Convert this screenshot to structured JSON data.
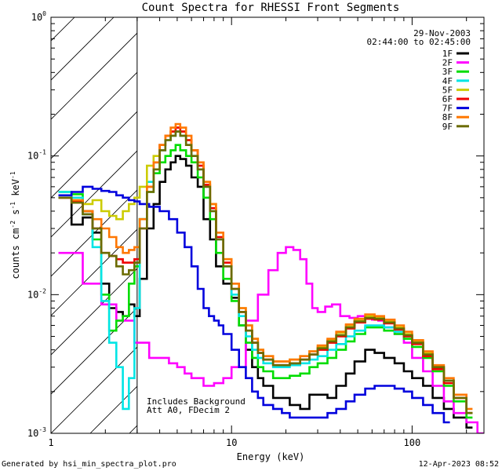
{
  "chart_data": {
    "type": "line",
    "title": "Count Spectra for RHESSI Front Segments",
    "xlabel": "Energy (keV)",
    "ylabel": "counts cm-2 s-1 keV-1",
    "ylabel_parts": {
      "base": "counts cm",
      "e1": "-2",
      "mid1": " s",
      "e2": "-1",
      "mid2": " keV",
      "e3": "-1"
    },
    "xscale": "log",
    "yscale": "log",
    "xlim": [
      1.0,
      250
    ],
    "ylim": [
      0.001,
      1.0
    ],
    "x_ticks": [
      {
        "value": 1,
        "label": "1"
      },
      {
        "value": 10,
        "label": "10"
      },
      {
        "value": 100,
        "label": "100"
      }
    ],
    "y_ticks": [
      {
        "value": 0.001,
        "label": "10",
        "exp": "-3"
      },
      {
        "value": 0.01,
        "label": "10",
        "exp": "-2"
      },
      {
        "value": 0.1,
        "label": "10",
        "exp": "-1"
      },
      {
        "value": 1.0,
        "label": "10",
        "exp": "0"
      }
    ],
    "hatched_region": {
      "x_start": 1.0,
      "x_end": 3.0
    },
    "info": {
      "date": "29-Nov-2003",
      "time_range": "02:44:00 to 02:45:00"
    },
    "annotations": [
      "Includes Background",
      "Att A0, FDecim 2"
    ],
    "legend_position": "top-right",
    "series": [
      {
        "name": "1F",
        "color": "#000000",
        "x": [
          1.1,
          1.3,
          1.5,
          1.7,
          1.9,
          2.1,
          2.3,
          2.5,
          2.7,
          2.9,
          3.1,
          3.4,
          3.7,
          4.0,
          4.3,
          4.6,
          4.9,
          5.2,
          5.6,
          6.0,
          6.5,
          7.0,
          7.6,
          8.2,
          9.0,
          10,
          11,
          12,
          13,
          14,
          15,
          17,
          19,
          21,
          24,
          27,
          30,
          34,
          38,
          43,
          48,
          55,
          62,
          70,
          80,
          90,
          100,
          115,
          130,
          150,
          170,
          200
        ],
        "y": [
          0.05,
          0.032,
          0.036,
          0.028,
          0.012,
          0.008,
          0.0075,
          0.007,
          0.0085,
          0.007,
          0.013,
          0.03,
          0.045,
          0.065,
          0.08,
          0.09,
          0.1,
          0.095,
          0.085,
          0.07,
          0.06,
          0.035,
          0.025,
          0.016,
          0.012,
          0.0095,
          0.006,
          0.004,
          0.003,
          0.0025,
          0.0022,
          0.0018,
          0.0018,
          0.0016,
          0.0015,
          0.0019,
          0.0019,
          0.0018,
          0.0022,
          0.0027,
          0.0033,
          0.004,
          0.0038,
          0.0035,
          0.0032,
          0.0028,
          0.0025,
          0.0022,
          0.0018,
          0.0015,
          0.0013,
          0.0011
        ]
      },
      {
        "name": "2F",
        "color": "#ff00ff",
        "x": [
          1.1,
          1.3,
          1.5,
          1.7,
          1.9,
          2.1,
          2.3,
          2.5,
          2.7,
          2.9,
          3.1,
          3.5,
          4,
          4.5,
          5,
          5.5,
          6,
          7,
          8,
          9,
          10,
          12,
          14,
          16,
          18,
          20,
          22,
          24,
          26,
          28,
          30,
          33,
          36,
          40,
          45,
          50,
          55,
          60,
          65,
          70,
          80,
          90,
          100,
          115,
          130,
          150,
          170,
          200,
          230
        ],
        "y": [
          0.02,
          0.02,
          0.012,
          0.012,
          0.0085,
          0.0085,
          0.0065,
          0.0065,
          0.0065,
          0.0045,
          0.0045,
          0.0035,
          0.0035,
          0.0032,
          0.003,
          0.0027,
          0.0025,
          0.0022,
          0.0023,
          0.0025,
          0.003,
          0.0065,
          0.01,
          0.015,
          0.02,
          0.022,
          0.021,
          0.018,
          0.012,
          0.008,
          0.0075,
          0.0082,
          0.0085,
          0.007,
          0.0068,
          0.007,
          0.0068,
          0.0066,
          0.0065,
          0.0058,
          0.0052,
          0.0045,
          0.0035,
          0.0028,
          0.0022,
          0.0017,
          0.0014,
          0.0012,
          0.001
        ]
      },
      {
        "name": "3F",
        "color": "#00dd00",
        "x": [
          1.1,
          1.3,
          1.5,
          1.7,
          1.9,
          2.1,
          2.3,
          2.5,
          2.7,
          2.9,
          3.1,
          3.4,
          3.7,
          4.0,
          4.3,
          4.6,
          4.9,
          5.2,
          5.6,
          6.0,
          6.5,
          7.0,
          7.6,
          8.2,
          9,
          10,
          11,
          12,
          13,
          14,
          15,
          17,
          19,
          21,
          24,
          27,
          30,
          34,
          38,
          43,
          48,
          55,
          62,
          70,
          80,
          90,
          100,
          115,
          130,
          150,
          170,
          200
        ],
        "y": [
          0.055,
          0.053,
          0.04,
          0.025,
          0.01,
          0.0055,
          0.0065,
          0.007,
          0.012,
          0.016,
          0.035,
          0.055,
          0.075,
          0.09,
          0.1,
          0.11,
          0.12,
          0.11,
          0.1,
          0.09,
          0.07,
          0.05,
          0.035,
          0.02,
          0.013,
          0.009,
          0.006,
          0.0045,
          0.0035,
          0.003,
          0.0028,
          0.0025,
          0.0025,
          0.0026,
          0.0027,
          0.003,
          0.0032,
          0.0035,
          0.004,
          0.0046,
          0.0052,
          0.0058,
          0.0058,
          0.0055,
          0.0052,
          0.0048,
          0.0042,
          0.0035,
          0.0028,
          0.0022,
          0.0017,
          0.0013
        ]
      },
      {
        "name": "4F",
        "color": "#00e5e5",
        "x": [
          1.1,
          1.3,
          1.5,
          1.7,
          1.9,
          2.1,
          2.3,
          2.5,
          2.7,
          2.9,
          3.1,
          3.4,
          3.7,
          4.0,
          4.3,
          4.6,
          4.9,
          5.2,
          5.6,
          6.0,
          6.5,
          7.0,
          7.6,
          8.2,
          9,
          10,
          11,
          12,
          13,
          14,
          15,
          17,
          19,
          21,
          24,
          27,
          30,
          34,
          38,
          43,
          48,
          55,
          62,
          70,
          80,
          90,
          100,
          115,
          130,
          150,
          170,
          200
        ],
        "y": [
          0.055,
          0.05,
          0.038,
          0.022,
          0.009,
          0.0045,
          0.003,
          0.0015,
          0.0025,
          0.008,
          0.035,
          0.065,
          0.09,
          0.11,
          0.13,
          0.14,
          0.15,
          0.14,
          0.12,
          0.1,
          0.08,
          0.06,
          0.04,
          0.025,
          0.016,
          0.01,
          0.007,
          0.005,
          0.004,
          0.0035,
          0.0032,
          0.003,
          0.003,
          0.0031,
          0.0032,
          0.0034,
          0.0036,
          0.004,
          0.0044,
          0.005,
          0.0055,
          0.006,
          0.006,
          0.0058,
          0.0054,
          0.005,
          0.0045,
          0.0038,
          0.003,
          0.0024,
          0.0018,
          0.0014
        ]
      },
      {
        "name": "5F",
        "color": "#cccc00",
        "x": [
          1.1,
          1.3,
          1.5,
          1.7,
          1.9,
          2.1,
          2.3,
          2.5,
          2.7,
          2.9,
          3.1,
          3.4,
          3.7,
          4.0,
          4.3,
          4.6,
          4.9,
          5.2,
          5.6,
          6.0,
          6.5,
          7.0,
          7.6,
          8.2,
          9,
          10,
          11,
          12,
          13,
          14,
          15,
          17,
          19,
          21,
          24,
          27,
          30,
          34,
          38,
          43,
          48,
          55,
          62,
          70,
          80,
          90,
          100,
          115,
          130,
          150,
          170,
          200
        ],
        "y": [
          0.05,
          0.048,
          0.045,
          0.048,
          0.04,
          0.037,
          0.035,
          0.04,
          0.045,
          0.05,
          0.06,
          0.085,
          0.1,
          0.12,
          0.14,
          0.15,
          0.16,
          0.15,
          0.13,
          0.11,
          0.09,
          0.065,
          0.045,
          0.028,
          0.018,
          0.012,
          0.008,
          0.006,
          0.0048,
          0.004,
          0.0036,
          0.0033,
          0.0033,
          0.0034,
          0.0036,
          0.0039,
          0.0042,
          0.0047,
          0.0053,
          0.006,
          0.0065,
          0.007,
          0.0068,
          0.0064,
          0.0058,
          0.0052,
          0.0046,
          0.0038,
          0.003,
          0.0024,
          0.0018,
          0.0014
        ]
      },
      {
        "name": "6F",
        "color": "#ee0000",
        "x": [
          1.1,
          1.3,
          1.5,
          1.7,
          1.9,
          2.1,
          2.3,
          2.5,
          2.7,
          2.9,
          3.1,
          3.4,
          3.7,
          4.0,
          4.3,
          4.6,
          4.9,
          5.2,
          5.6,
          6.0,
          6.5,
          7.0,
          7.6,
          8.2,
          9,
          10,
          11,
          12,
          13,
          14,
          15,
          17,
          19,
          21,
          24,
          27,
          30,
          34,
          38,
          43,
          48,
          55,
          62,
          70,
          80,
          90,
          100,
          115,
          130,
          150,
          170,
          200
        ],
        "y": [
          0.05,
          0.047,
          0.04,
          0.03,
          0.02,
          0.019,
          0.018,
          0.017,
          0.017,
          0.018,
          0.03,
          0.06,
          0.09,
          0.12,
          0.14,
          0.15,
          0.16,
          0.15,
          0.13,
          0.11,
          0.085,
          0.062,
          0.042,
          0.026,
          0.017,
          0.011,
          0.0075,
          0.0055,
          0.0045,
          0.0038,
          0.0034,
          0.0031,
          0.0031,
          0.0032,
          0.0034,
          0.0037,
          0.004,
          0.0045,
          0.005,
          0.0057,
          0.0063,
          0.0067,
          0.0066,
          0.0062,
          0.0056,
          0.005,
          0.0044,
          0.0036,
          0.0029,
          0.0023,
          0.0018,
          0.0014
        ]
      },
      {
        "name": "7F",
        "color": "#0000dd",
        "x": [
          1.1,
          1.3,
          1.5,
          1.7,
          1.9,
          2.1,
          2.3,
          2.5,
          2.7,
          2.9,
          3.1,
          3.5,
          4.0,
          4.5,
          5.0,
          5.5,
          6.0,
          6.5,
          7.0,
          7.5,
          8.0,
          8.5,
          9.0,
          10,
          11,
          12,
          13,
          14,
          15,
          17,
          19,
          21,
          24,
          27,
          30,
          34,
          38,
          43,
          48,
          55,
          62,
          70,
          80,
          90,
          100,
          115,
          130,
          150
        ],
        "y": [
          0.052,
          0.055,
          0.06,
          0.058,
          0.056,
          0.055,
          0.052,
          0.05,
          0.048,
          0.047,
          0.045,
          0.043,
          0.04,
          0.035,
          0.028,
          0.022,
          0.016,
          0.011,
          0.008,
          0.007,
          0.0065,
          0.006,
          0.0052,
          0.004,
          0.003,
          0.0025,
          0.002,
          0.0018,
          0.0016,
          0.0015,
          0.0014,
          0.0013,
          0.0013,
          0.0013,
          0.0013,
          0.0014,
          0.0015,
          0.0017,
          0.0019,
          0.0021,
          0.0022,
          0.0022,
          0.0021,
          0.002,
          0.0018,
          0.0016,
          0.0014,
          0.0012
        ]
      },
      {
        "name": "8F",
        "color": "#ff7700",
        "x": [
          1.1,
          1.3,
          1.5,
          1.7,
          1.9,
          2.1,
          2.3,
          2.5,
          2.7,
          2.9,
          3.1,
          3.4,
          3.7,
          4.0,
          4.3,
          4.6,
          4.9,
          5.2,
          5.6,
          6.0,
          6.5,
          7.0,
          7.6,
          8.2,
          9,
          10,
          11,
          12,
          13,
          14,
          15,
          17,
          19,
          21,
          24,
          27,
          30,
          34,
          38,
          43,
          48,
          55,
          62,
          70,
          80,
          90,
          100,
          115,
          130,
          150,
          170,
          200
        ],
        "y": [
          0.05,
          0.048,
          0.04,
          0.035,
          0.03,
          0.026,
          0.022,
          0.02,
          0.021,
          0.022,
          0.035,
          0.06,
          0.09,
          0.12,
          0.14,
          0.16,
          0.17,
          0.16,
          0.14,
          0.11,
          0.09,
          0.065,
          0.045,
          0.028,
          0.018,
          0.012,
          0.008,
          0.006,
          0.0048,
          0.004,
          0.0036,
          0.0033,
          0.0033,
          0.0034,
          0.0036,
          0.0039,
          0.0043,
          0.0048,
          0.0054,
          0.0061,
          0.0067,
          0.0072,
          0.007,
          0.0066,
          0.006,
          0.0054,
          0.0047,
          0.0039,
          0.0031,
          0.0025,
          0.0019,
          0.0015
        ]
      },
      {
        "name": "9F",
        "color": "#6b6b00",
        "x": [
          1.1,
          1.3,
          1.5,
          1.7,
          1.9,
          2.1,
          2.3,
          2.5,
          2.7,
          2.9,
          3.1,
          3.4,
          3.7,
          4.0,
          4.3,
          4.6,
          4.9,
          5.2,
          5.6,
          6.0,
          6.5,
          7.0,
          7.6,
          8.2,
          9,
          10,
          11,
          12,
          13,
          14,
          15,
          17,
          19,
          21,
          24,
          27,
          30,
          34,
          38,
          43,
          48,
          55,
          62,
          70,
          80,
          90,
          100,
          115,
          130,
          150,
          170,
          200
        ],
        "y": [
          0.05,
          0.046,
          0.038,
          0.03,
          0.02,
          0.019,
          0.016,
          0.014,
          0.015,
          0.017,
          0.03,
          0.055,
          0.08,
          0.11,
          0.13,
          0.14,
          0.15,
          0.14,
          0.12,
          0.1,
          0.08,
          0.06,
          0.04,
          0.025,
          0.016,
          0.011,
          0.0075,
          0.0055,
          0.0045,
          0.0038,
          0.0034,
          0.0031,
          0.0031,
          0.0032,
          0.0034,
          0.0037,
          0.0041,
          0.0046,
          0.0051,
          0.0058,
          0.0064,
          0.0068,
          0.0067,
          0.0063,
          0.0057,
          0.0051,
          0.0045,
          0.0037,
          0.003,
          0.0024,
          0.0018,
          0.0014
        ]
      }
    ]
  },
  "footer": {
    "generated_by": "Generated by hsi_min_spectra_plot.pro",
    "timestamp": "12-Apr-2023 08:52"
  }
}
